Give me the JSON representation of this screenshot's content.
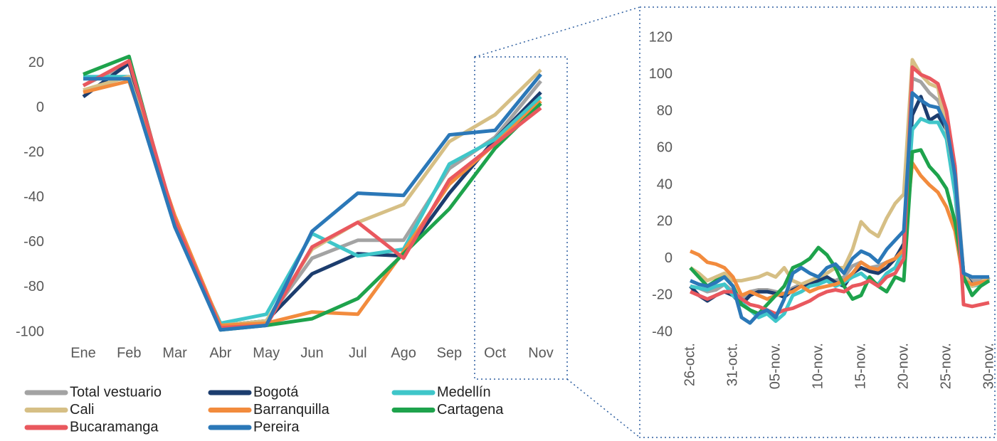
{
  "chart_data": [
    {
      "type": "line",
      "categories": [
        "Ene",
        "Feb",
        "Mar",
        "Abr",
        "May",
        "Jun",
        "Jul",
        "Ago",
        "Sep",
        "Oct",
        "Nov"
      ],
      "ylim": [
        -100,
        25
      ],
      "yticks": [
        -100,
        -80,
        -60,
        -40,
        -20,
        0,
        20
      ],
      "grid": false,
      "legend": "bottom",
      "series": [
        {
          "name": "Total vestuario",
          "color": "#a3a3a3",
          "values": [
            10,
            20,
            -50,
            -97,
            -95,
            -67,
            -59,
            -59,
            -27,
            -13,
            12
          ]
        },
        {
          "name": "Bogotá",
          "color": "#1c3d6e",
          "values": [
            5,
            20,
            -52,
            -97,
            -95,
            -74,
            -65,
            -66,
            -38,
            -14,
            7
          ]
        },
        {
          "name": "Medellín",
          "color": "#3fc6c9",
          "values": [
            14,
            14,
            -52,
            -96,
            -92,
            -56,
            -66,
            -63,
            -25,
            -14,
            5
          ]
        },
        {
          "name": "Cali",
          "color": "#d6bf85",
          "values": [
            8,
            14,
            -50,
            -97,
            -95,
            -63,
            -51,
            -43,
            -15,
            -3,
            17
          ]
        },
        {
          "name": "Barranquilla",
          "color": "#f28b3d",
          "values": [
            7,
            12,
            -48,
            -97,
            -96,
            -91,
            -92,
            -64,
            -34,
            -16,
            3
          ]
        },
        {
          "name": "Cartagena",
          "color": "#1ea34c",
          "values": [
            15,
            23,
            -52,
            -99,
            -97,
            -94,
            -85,
            -65,
            -45,
            -18,
            2
          ]
        },
        {
          "name": "Bucaramanga",
          "color": "#e9585e",
          "values": [
            10,
            21,
            -50,
            -98,
            -97,
            -62,
            -51,
            -67,
            -32,
            -16,
            0
          ]
        },
        {
          "name": "Pereira",
          "color": "#2b78b8",
          "values": [
            13,
            13,
            -53,
            -99,
            -97,
            -55,
            -38,
            -39,
            -12,
            -10,
            15
          ]
        }
      ]
    },
    {
      "type": "line",
      "categories": [
        "26-oct.",
        null,
        null,
        null,
        null,
        "31-oct.",
        null,
        null,
        null,
        null,
        "05-nov.",
        null,
        null,
        null,
        null,
        "10-nov.",
        null,
        null,
        null,
        null,
        "15-nov.",
        null,
        null,
        null,
        null,
        "20-nov.",
        null,
        null,
        null,
        null,
        "25-nov.",
        null,
        null,
        null,
        null,
        "30-nov."
      ],
      "ylim": [
        -40,
        120
      ],
      "yticks": [
        -40,
        -20,
        0,
        20,
        40,
        60,
        80,
        100,
        120
      ],
      "grid": false,
      "series": [
        {
          "color": "#a3a3a3",
          "values": [
            -15,
            -16,
            -18,
            -17,
            -14,
            -18,
            -22,
            -18,
            -17,
            -17,
            -18,
            -19,
            -16,
            -14,
            -13,
            -12,
            -11,
            -12,
            -10,
            -4,
            -2,
            -5,
            -4,
            -2,
            0,
            5,
            98,
            96,
            90,
            86,
            76,
            50,
            -8,
            -12,
            -12,
            -10
          ]
        },
        {
          "color": "#1c3d6e",
          "values": [
            -15,
            -20,
            -23,
            -20,
            -18,
            -20,
            -25,
            -20,
            -18,
            -18,
            -19,
            -21,
            -17,
            -15,
            -14,
            -12,
            -10,
            -13,
            -15,
            -8,
            -5,
            -7,
            -8,
            -5,
            0,
            8,
            78,
            88,
            75,
            78,
            70,
            40,
            -8,
            -14,
            -14,
            -10
          ]
        },
        {
          "color": "#3fc6c9",
          "values": [
            -15,
            -16,
            -17,
            -15,
            -14,
            -20,
            -24,
            -28,
            -32,
            -30,
            -34,
            -30,
            -20,
            -18,
            -15,
            -14,
            -12,
            -15,
            -13,
            -10,
            -8,
            -12,
            -14,
            -8,
            -5,
            5,
            70,
            76,
            74,
            74,
            65,
            35,
            -10,
            -15,
            -14,
            -11
          ]
        },
        {
          "color": "#d6bf85",
          "values": [
            -5,
            -8,
            -12,
            -10,
            -8,
            -12,
            -12,
            -11,
            -10,
            -8,
            -10,
            -5,
            -12,
            -14,
            -12,
            -10,
            -8,
            -5,
            -5,
            5,
            20,
            15,
            12,
            22,
            30,
            35,
            108,
            100,
            95,
            93,
            70,
            45,
            -8,
            -15,
            -13,
            -10
          ]
        },
        {
          "color": "#f28b3d",
          "values": [
            4,
            2,
            -2,
            -3,
            -5,
            -10,
            -20,
            -18,
            -20,
            -22,
            -20,
            -19,
            -18,
            -15,
            -18,
            -16,
            -15,
            -14,
            -12,
            -8,
            -2,
            -5,
            -6,
            -2,
            0,
            5,
            52,
            45,
            40,
            36,
            28,
            15,
            -12,
            -14,
            -13,
            -12
          ]
        },
        {
          "color": "#1ea34c",
          "values": [
            -5,
            -10,
            -15,
            -12,
            -10,
            -15,
            -25,
            -28,
            -30,
            -25,
            -20,
            -15,
            -5,
            -3,
            0,
            6,
            2,
            -5,
            -15,
            -22,
            -20,
            -10,
            -15,
            -18,
            -10,
            -12,
            58,
            59,
            50,
            45,
            38,
            20,
            -10,
            -20,
            -15,
            -12
          ]
        },
        {
          "color": "#e9585e",
          "values": [
            -18,
            -20,
            -22,
            -20,
            -18,
            -18,
            -22,
            -25,
            -26,
            -28,
            -30,
            -28,
            -27,
            -25,
            -23,
            -20,
            -18,
            -17,
            -18,
            -15,
            -14,
            -12,
            -15,
            -10,
            -8,
            0,
            104,
            100,
            98,
            95,
            80,
            50,
            -25,
            -26,
            -25,
            -24
          ]
        },
        {
          "color": "#2b78b8",
          "values": [
            -12,
            -14,
            -15,
            -13,
            -10,
            -15,
            -32,
            -35,
            -30,
            -28,
            -32,
            -22,
            -8,
            -5,
            -8,
            -10,
            -5,
            -3,
            -8,
            0,
            4,
            2,
            -2,
            5,
            10,
            15,
            90,
            86,
            83,
            82,
            72,
            45,
            -8,
            -10,
            -10,
            -10
          ]
        }
      ]
    }
  ]
}
